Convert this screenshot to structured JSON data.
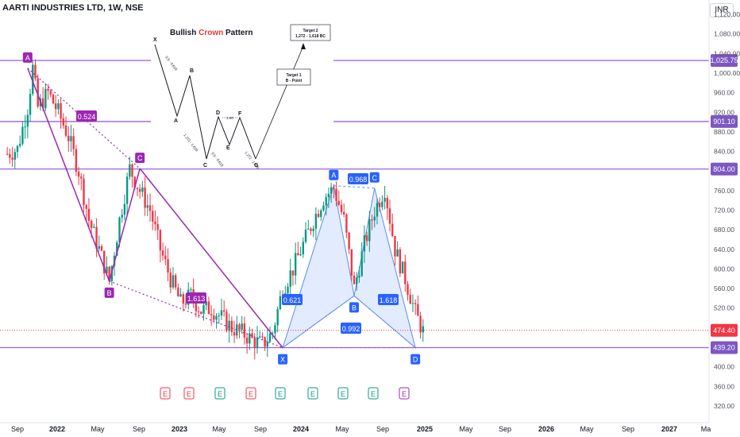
{
  "header": {
    "title": "AARTI INDUSTRIES LTD, 1W, NSE",
    "currency": "INR"
  },
  "chart_data": {
    "type": "candlestick",
    "price_axis": {
      "ticks": [
        "1,120.00",
        "1,080.00",
        "1,040.00",
        "1,000.00",
        "960.00",
        "920.00",
        "880.00",
        "840.00",
        "760.00",
        "720.00",
        "680.00",
        "640.00",
        "600.00",
        "560.00",
        "520.00",
        "400.00",
        "360.00",
        "320.00"
      ],
      "range": [
        290,
        1135
      ]
    },
    "time_axis": {
      "labels": [
        "Sep",
        "2022",
        "May",
        "Sep",
        "2023",
        "May",
        "Sep",
        "2024",
        "May",
        "Sep",
        "2025",
        "May",
        "Sep",
        "2026",
        "May",
        "Sep",
        "2027",
        "Ma"
      ]
    },
    "price_levels": [
      {
        "label": "1,025.75",
        "value": 1025.75,
        "kind": "level"
      },
      {
        "label": "901.10",
        "value": 901.1,
        "kind": "level"
      },
      {
        "label": "804.00",
        "value": 804.0,
        "kind": "level"
      },
      {
        "label": "474.40",
        "value": 474.4,
        "kind": "current"
      },
      {
        "label": "439.20",
        "value": 439.2,
        "kind": "level"
      }
    ],
    "pattern_points": [
      {
        "label": "A",
        "date": "2021-10",
        "value": 1010
      },
      {
        "label": "B",
        "date": "2022-06",
        "value": 575
      },
      {
        "label": "C",
        "date": "2022-09",
        "value": 805
      },
      {
        "label": "X",
        "date": "2023-11",
        "value": 439
      },
      {
        "label": "A",
        "date": "2024-04",
        "value": 770
      },
      {
        "label": "B",
        "date": "2024-06",
        "value": 545
      },
      {
        "label": "C",
        "date": "2024-08",
        "value": 765
      },
      {
        "label": "D",
        "date": "2024-12",
        "value": 439
      }
    ],
    "ratios": [
      "0.524",
      "1.613",
      "0.621",
      "0.968",
      "1.618",
      "0.992"
    ],
    "event_markers": [
      "E",
      "E",
      "E",
      "E",
      "E",
      "E",
      "E",
      "E",
      "E"
    ],
    "inset": {
      "title_prefix": "Bullish",
      "title_highlight": "Crown",
      "title_suffix": "Pattern",
      "points": [
        "X",
        "A",
        "B",
        "C",
        "D",
        "E",
        "F",
        "G"
      ],
      "labels": [
        "0.5 - 0.618",
        "1.272 - 1.618",
        "0.5 - 0.618",
        "1.00",
        "1.272 - 1.618"
      ],
      "target1": "Target 1",
      "target1_sub": "B - Point",
      "target2": "Target 2",
      "target2_sub": "1.272 - 1.618 BC"
    }
  }
}
